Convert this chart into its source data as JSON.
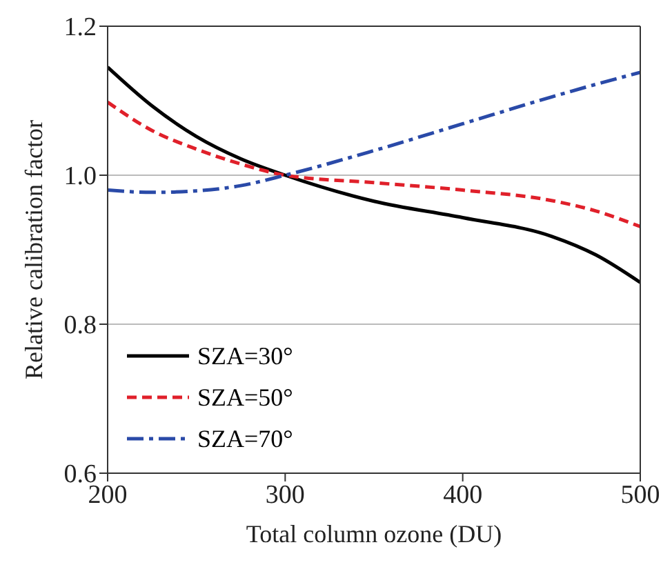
{
  "chart_data": {
    "type": "line",
    "xlabel": "Total column ozone (DU)",
    "ylabel": "Relative calibration factor",
    "x": [
      200,
      225,
      250,
      275,
      300,
      350,
      400,
      450,
      475,
      500
    ],
    "series": [
      {
        "name": "SZA=30°",
        "color": "#000000",
        "line_style": "solid",
        "values": [
          1.145,
          1.093,
          1.052,
          1.022,
          1.0,
          0.965,
          0.943,
          0.918,
          0.893,
          0.856
        ]
      },
      {
        "name": "SZA=50°",
        "color": "#e0202a",
        "line_style": "dashed",
        "values": [
          1.098,
          1.06,
          1.035,
          1.015,
          1.0,
          0.99,
          0.98,
          0.966,
          0.952,
          0.931
        ]
      },
      {
        "name": "SZA=70°",
        "color": "#2a4aa8",
        "line_style": "dashdot",
        "values": [
          0.98,
          0.977,
          0.979,
          0.986,
          1.0,
          1.033,
          1.069,
          1.105,
          1.122,
          1.138
        ]
      }
    ],
    "xlim": [
      200,
      500
    ],
    "xticks": [
      200,
      300,
      400,
      500
    ],
    "ylim": [
      0.6,
      1.2
    ],
    "yticks": [
      0.6,
      {
        "value": 0.8,
        "label": "0.8"
      },
      {
        "value": 1.0,
        "label": "1.0"
      },
      1.2
    ],
    "grid": "y",
    "legend": "bottom left",
    "marker": "none"
  }
}
